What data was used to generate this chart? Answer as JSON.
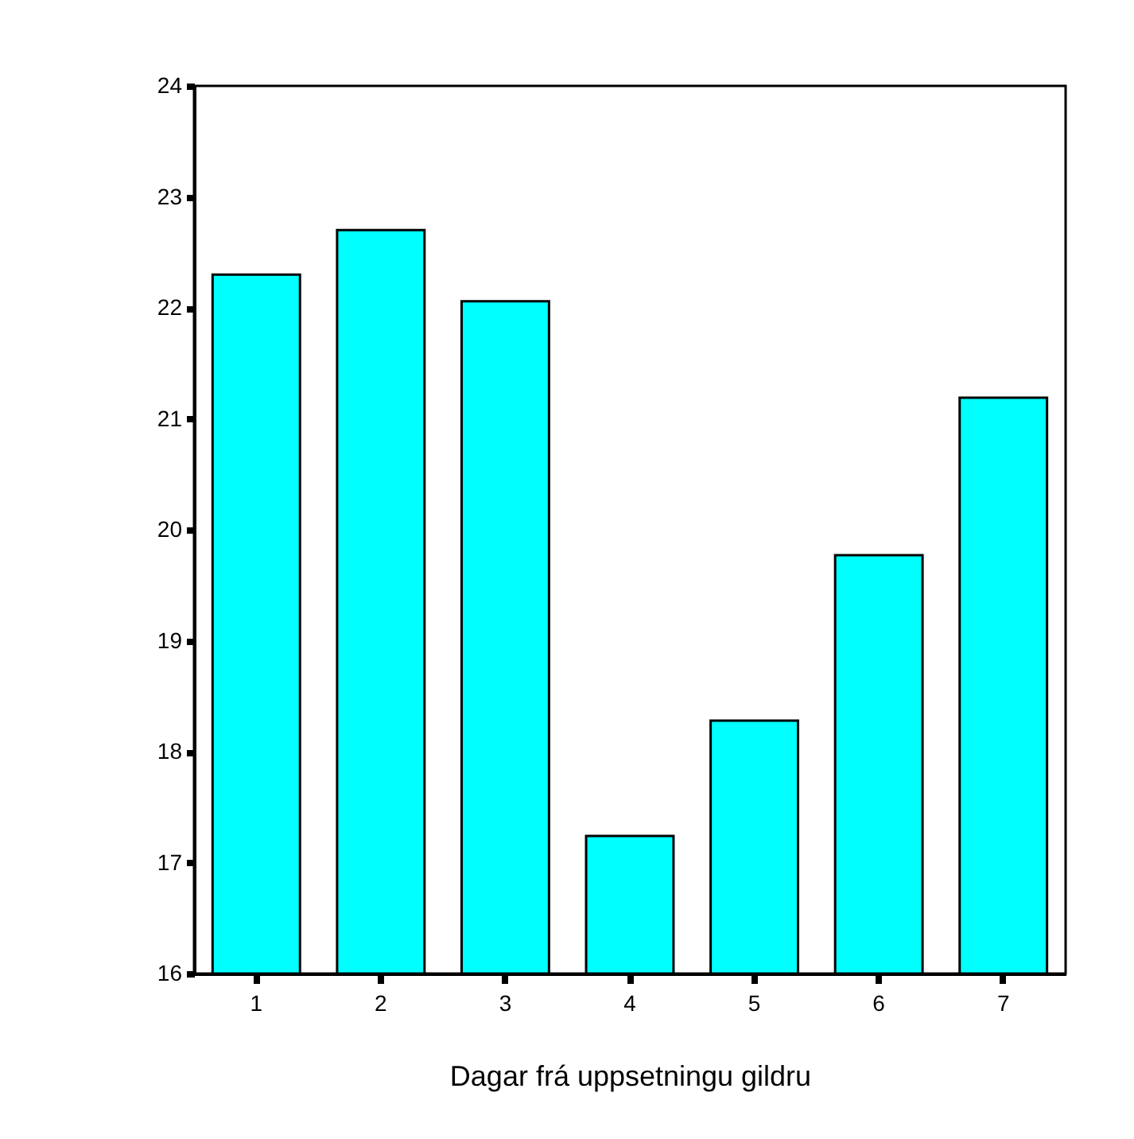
{
  "chart_data": {
    "type": "bar",
    "xlabel": "Dagar frá uppsetningu gildru",
    "categories": [
      "1",
      "2",
      "3",
      "4",
      "5",
      "6",
      "7"
    ],
    "values": [
      22.3,
      22.7,
      22.06,
      17.24,
      18.28,
      19.77,
      21.19
    ],
    "color": "#00ffff",
    "ylim": [
      16,
      24
    ],
    "yticks": [
      16,
      17,
      18,
      19,
      20,
      21,
      22,
      23,
      24
    ],
    "grid": false
  }
}
